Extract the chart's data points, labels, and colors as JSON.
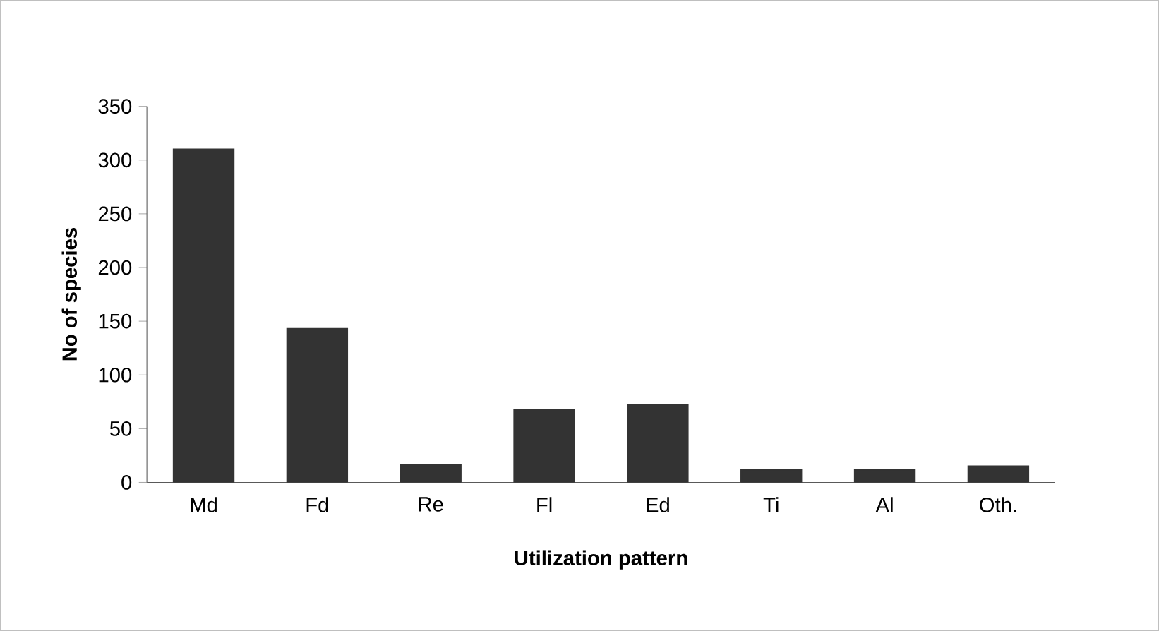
{
  "chart_data": {
    "type": "bar",
    "xlabel": "Utilization pattern",
    "ylabel": "No of species",
    "categories": [
      "Md",
      "Fd",
      "Re",
      "Fl",
      "Ed",
      "Ti",
      "Al",
      "Oth."
    ],
    "values": [
      310,
      143,
      16,
      68,
      72,
      12,
      12,
      15
    ],
    "color": "#333333",
    "ylim": [
      0,
      350
    ],
    "yticks": [
      0,
      50,
      100,
      150,
      200,
      250,
      300,
      350
    ],
    "grid": false
  }
}
